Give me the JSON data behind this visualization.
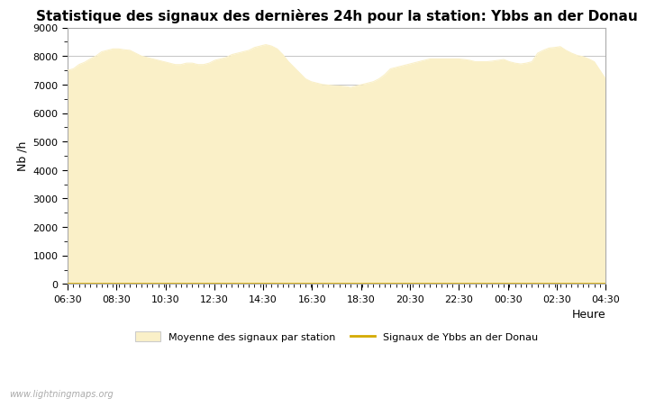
{
  "title": "Statistique des signaux des dernières 24h pour la station: Ybbs an der Donau",
  "xlabel": "Heure",
  "ylabel": "Nb /h",
  "ylim": [
    0,
    9000
  ],
  "yticks": [
    0,
    1000,
    2000,
    3000,
    4000,
    5000,
    6000,
    7000,
    8000,
    9000
  ],
  "x_labels": [
    "06:30",
    "08:30",
    "10:30",
    "12:30",
    "14:30",
    "16:30",
    "18:30",
    "20:30",
    "22:30",
    "00:30",
    "02:30",
    "04:30"
  ],
  "fill_color": "#FAF0C8",
  "line_color": "#D4AA00",
  "background_color": "#FFFFFF",
  "plot_bg_color": "#FFFFFF",
  "grid_color": "#BBBBBB",
  "title_fontsize": 11,
  "axis_fontsize": 9,
  "tick_fontsize": 8,
  "watermark": "www.lightningmaps.org",
  "legend_label_fill": "Moyenne des signaux par station",
  "legend_label_line": "Signaux de Ybbs an der Donau",
  "x_values": [
    0,
    1,
    2,
    3,
    4,
    5,
    6,
    7,
    8,
    9,
    10,
    11,
    12,
    13,
    14,
    15,
    16,
    17,
    18,
    19,
    20,
    21,
    22,
    23,
    24,
    25,
    26,
    27,
    28,
    29,
    30,
    31,
    32,
    33,
    34,
    35,
    36,
    37,
    38,
    39,
    40,
    41,
    42,
    43,
    44,
    45,
    46,
    47,
    48,
    49,
    50,
    51,
    52,
    53,
    54,
    55,
    56,
    57,
    58,
    59,
    60,
    61,
    62,
    63,
    64,
    65,
    66,
    67,
    68,
    69,
    70,
    71,
    72,
    73,
    74,
    75,
    76,
    77,
    78,
    79,
    80,
    81,
    82,
    83,
    84,
    85,
    86,
    87,
    88,
    89,
    90,
    91,
    92,
    93,
    94,
    95
  ],
  "y_fill": [
    7500,
    7550,
    7700,
    7780,
    7900,
    8000,
    8150,
    8200,
    8250,
    8250,
    8220,
    8200,
    8100,
    8000,
    7950,
    7900,
    7850,
    7800,
    7750,
    7700,
    7700,
    7750,
    7750,
    7700,
    7700,
    7750,
    7850,
    7900,
    7950,
    8050,
    8100,
    8150,
    8200,
    8300,
    8350,
    8400,
    8350,
    8250,
    8050,
    7800,
    7600,
    7400,
    7200,
    7100,
    7050,
    7000,
    6980,
    6960,
    6950,
    6930,
    6900,
    6950,
    7000,
    7050,
    7100,
    7200,
    7350,
    7550,
    7600,
    7650,
    7700,
    7750,
    7800,
    7850,
    7900,
    7900,
    7900,
    7900,
    7900,
    7900,
    7880,
    7850,
    7800,
    7800,
    7800,
    7820,
    7850,
    7880,
    7800,
    7750,
    7720,
    7750,
    7800,
    8100,
    8200,
    8280,
    8300,
    8330,
    8200,
    8100,
    8020,
    7980,
    7900,
    7800,
    7500,
    7200
  ],
  "y_line": [
    5,
    5,
    5,
    5,
    5,
    5,
    5,
    5,
    5,
    5,
    5,
    5,
    5,
    5,
    5,
    5,
    5,
    5,
    5,
    5,
    5,
    5,
    5,
    5,
    5,
    5,
    5,
    5,
    5,
    5,
    5,
    5,
    5,
    5,
    5,
    5,
    5,
    5,
    5,
    5,
    5,
    5,
    5,
    5,
    5,
    5,
    5,
    5,
    5,
    5,
    5,
    5,
    5,
    5,
    5,
    5,
    5,
    5,
    5,
    5,
    5,
    5,
    5,
    5,
    5,
    5,
    5,
    5,
    5,
    5,
    5,
    5,
    5,
    5,
    5,
    5,
    5,
    5,
    5,
    5,
    5,
    5,
    5,
    5,
    5,
    5,
    5,
    5,
    5,
    5,
    5,
    5,
    5,
    5,
    5,
    5
  ]
}
